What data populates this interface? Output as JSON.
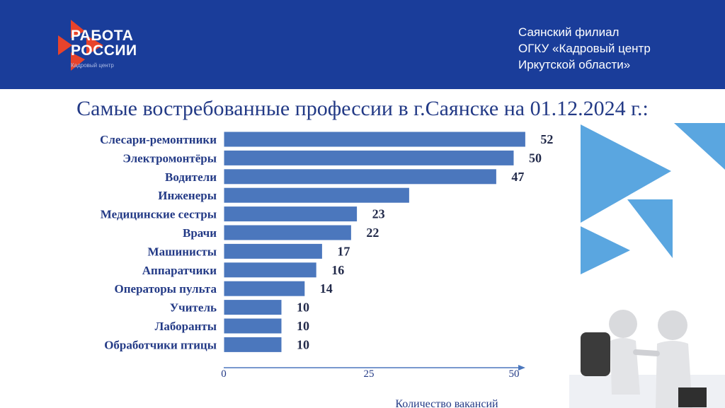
{
  "header": {
    "logo_line1": "РАБОТА",
    "logo_line2": "РОССИИ",
    "logo_sub": "Кадровый центр",
    "org_line1": "Саянский филиал",
    "org_line2": "ОГКУ «Кадровый центр",
    "org_line3": "Иркутской области»"
  },
  "colors": {
    "header_bg": "#1a3d9a",
    "bar": "#4b77bd",
    "title": "#233a86",
    "accent_red": "#e8432b",
    "deco_blue": "#5aa6e0"
  },
  "icons": [
    "rabota-rossii-logo",
    "triangle-decoration",
    "handshake-illustration"
  ],
  "chart_data": {
    "type": "bar",
    "orientation": "horizontal",
    "title": "Самые востребованные профессии в г.Саянске на 01.12.2024 г.:",
    "categories": [
      "Слесари-ремонтники",
      "Электромонтёры",
      "Водители",
      "Инженеры",
      "Медицинские сестры",
      "Врачи",
      "Машинисты",
      "Аппаратчики",
      "Операторы пульта",
      "Учитель",
      "Лаборанты",
      "Обработчики птицы"
    ],
    "values": [
      52,
      50,
      47,
      32,
      23,
      22,
      17,
      16,
      14,
      10,
      10,
      10
    ],
    "data_labels": [
      "52",
      "50",
      "47",
      "",
      "23",
      "22",
      "17",
      "16",
      "14",
      "10",
      "10",
      "10"
    ],
    "xlabel": "Количество вакансий",
    "ylabel": "",
    "xlim": [
      0,
      50
    ],
    "xticks": [
      "0",
      "25",
      "50"
    ],
    "grid": false
  }
}
